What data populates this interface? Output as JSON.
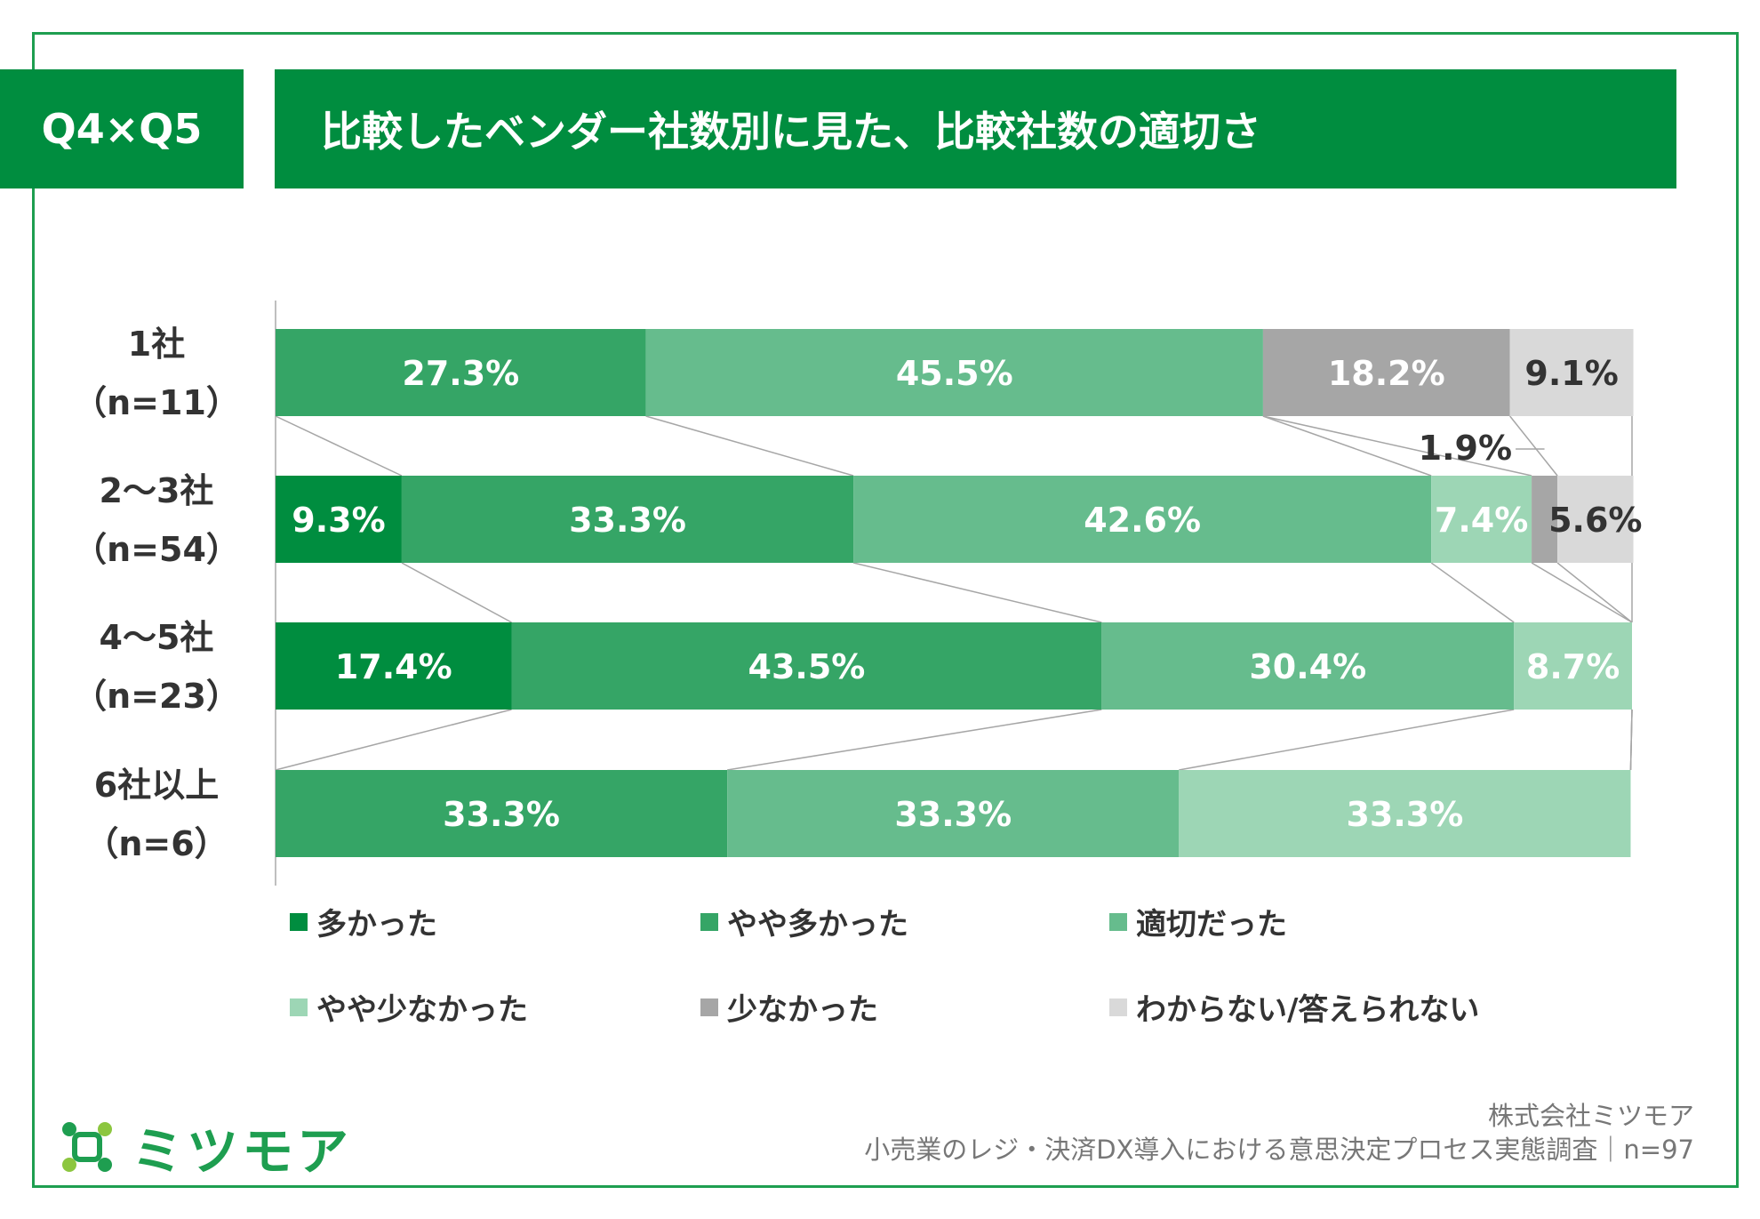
{
  "header": {
    "badge": "Q4×Q5",
    "title": "比較したベンダー社数別に見た、比較社数の適切さ"
  },
  "colors": {
    "header_bg": "#008d3f",
    "frame": "#1e9e50",
    "多かった": "#008d3f",
    "やや多かった": "#35a566",
    "適切だった": "#66bc8d",
    "やや少なかった": "#9dd6b5",
    "少なかった": "#a6a6a6",
    "わからない/答えられない": "#d9d9d9"
  },
  "chart_data": {
    "type": "bar",
    "orientation": "horizontal-stacked-100",
    "categories": [
      {
        "label": "1社",
        "n": "（n=11）"
      },
      {
        "label": "2〜3社",
        "n": "（n=54）"
      },
      {
        "label": "4〜5社",
        "n": "（n=23）"
      },
      {
        "label": "6社以上",
        "n": "（n=6）"
      }
    ],
    "series": [
      {
        "name": "多かった",
        "values": [
          0,
          9.3,
          17.4,
          0
        ]
      },
      {
        "name": "やや多かった",
        "values": [
          27.3,
          33.3,
          43.5,
          33.3
        ]
      },
      {
        "name": "適切だった",
        "values": [
          45.5,
          42.6,
          30.4,
          33.3
        ]
      },
      {
        "name": "やや少なかった",
        "values": [
          0,
          7.4,
          8.7,
          33.3
        ]
      },
      {
        "name": "少なかった",
        "values": [
          18.2,
          1.9,
          0,
          0
        ]
      },
      {
        "name": "わからない/答えられない",
        "values": [
          9.1,
          5.6,
          0,
          0
        ]
      }
    ],
    "value_labels": [
      [
        "",
        "27.3%",
        "45.5%",
        "",
        "18.2%",
        "9.1%"
      ],
      [
        "9.3%",
        "33.3%",
        "42.6%",
        "7.4%",
        "1.9%",
        "5.6%"
      ],
      [
        "17.4%",
        "43.5%",
        "30.4%",
        "8.7%",
        "",
        ""
      ],
      [
        "",
        "33.3%",
        "33.3%",
        "33.3%",
        "",
        ""
      ]
    ],
    "xlim": [
      0,
      100
    ],
    "legend_position": "bottom",
    "series_connector_lines": true
  },
  "legend": [
    "多かった",
    "やや多かった",
    "適切だった",
    "やや少なかった",
    "少なかった",
    "わからない/答えられない"
  ],
  "footer": {
    "logo_text": "ミツモア",
    "company": "株式会社ミツモア",
    "survey": "小売業のレジ・決済DX導入における意思決定プロセス実態調査｜n=97"
  }
}
